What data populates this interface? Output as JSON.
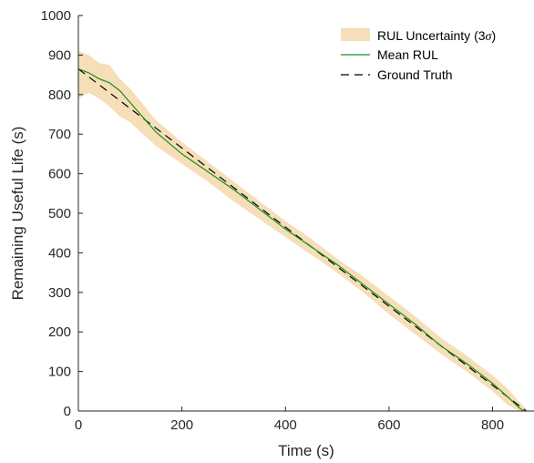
{
  "chart_data": {
    "type": "line",
    "xlabel": "Time (s)",
    "ylabel": "Remaining Useful Life (s)",
    "xlim": [
      0,
      880
    ],
    "ylim": [
      0,
      1000
    ],
    "xticks": [
      0,
      200,
      400,
      600,
      800
    ],
    "yticks": [
      0,
      100,
      200,
      300,
      400,
      500,
      600,
      700,
      800,
      900,
      1000
    ],
    "grid": false,
    "legend_position": "top-right",
    "colors": {
      "band": "#f5deb8",
      "mean": "#1a8f1a",
      "truth": "#000000",
      "axis": "#262626"
    },
    "series": [
      {
        "name": "RUL Uncertainty (3σ)",
        "legend_label": "RUL Uncertainty (3",
        "legend_symbol": "σ",
        "legend_suffix": ")",
        "kind": "band",
        "x": [
          0,
          20,
          40,
          60,
          80,
          100,
          150,
          200,
          250,
          300,
          350,
          400,
          450,
          500,
          550,
          600,
          650,
          700,
          750,
          800,
          830,
          850,
          865
        ],
        "lower": [
          790,
          805,
          790,
          770,
          745,
          730,
          670,
          625,
          580,
          530,
          485,
          440,
          395,
          350,
          300,
          245,
          195,
          145,
          100,
          50,
          15,
          0,
          0
        ],
        "upper": [
          910,
          900,
          880,
          875,
          840,
          815,
          735,
          680,
          630,
          580,
          530,
          480,
          435,
          385,
          340,
          290,
          240,
          185,
          140,
          90,
          55,
          25,
          5
        ]
      },
      {
        "name": "Mean RUL",
        "kind": "line",
        "x": [
          0,
          20,
          40,
          60,
          80,
          100,
          150,
          200,
          250,
          300,
          350,
          400,
          450,
          500,
          550,
          600,
          650,
          700,
          750,
          800,
          830,
          850,
          860
        ],
        "y": [
          865,
          855,
          840,
          830,
          810,
          780,
          705,
          650,
          605,
          560,
          510,
          460,
          415,
          370,
          320,
          270,
          220,
          165,
          120,
          70,
          35,
          10,
          0
        ]
      },
      {
        "name": "Ground Truth",
        "kind": "dashed",
        "x": [
          0,
          865
        ],
        "y": [
          865,
          0
        ]
      }
    ]
  }
}
